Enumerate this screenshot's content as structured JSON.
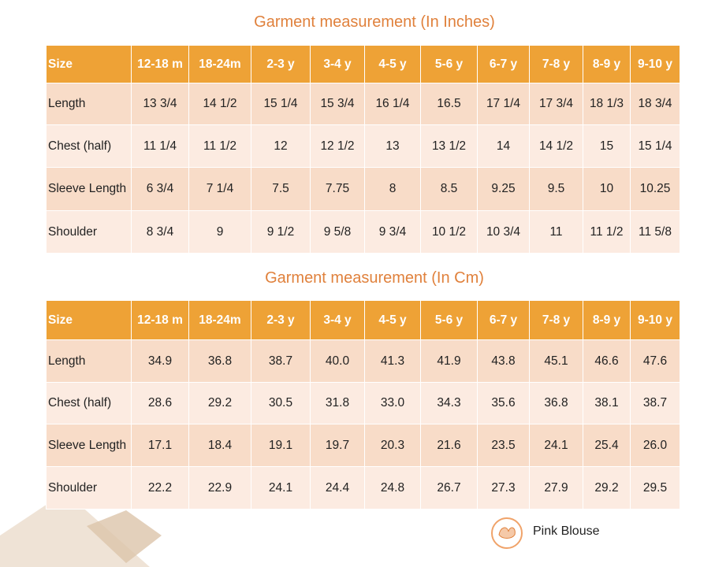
{
  "tables": [
    {
      "title": "Garment measurement (In Inches)",
      "header": [
        "Size",
        "12-18 m",
        "18-24m",
        "2-3 y",
        "3-4 y",
        "4-5 y",
        "5-6 y",
        "6-7 y",
        "7-8 y",
        "8-9 y",
        "9-10 y"
      ],
      "rows": [
        [
          "Length",
          "13 3/4",
          "14 1/2",
          "15 1/4",
          "15 3/4",
          "16 1/4",
          "16.5",
          "17 1/4",
          "17 3/4",
          "18 1/3",
          "18 3/4"
        ],
        [
          "Chest (half)",
          "11 1/4",
          "11 1/2",
          "12",
          "12 1/2",
          "13",
          "13 1/2",
          "14",
          "14 1/2",
          "15",
          "15 1/4"
        ],
        [
          "Sleeve Length",
          "6 3/4",
          "7 1/4",
          "7.5",
          "7.75",
          "8",
          "8.5",
          "9.25",
          "9.5",
          "10",
          "10.25"
        ],
        [
          "Shoulder",
          "8 3/4",
          "9",
          "9 1/2",
          "9 5/8",
          "9 3/4",
          "10 1/2",
          "10 3/4",
          "11",
          "11 1/2",
          "11 5/8"
        ]
      ]
    },
    {
      "title": "Garment measurement (In Cm)",
      "header": [
        "Size",
        "12-18 m",
        "18-24m",
        "2-3 y",
        "3-4 y",
        "4-5 y",
        "5-6 y",
        "6-7 y",
        "7-8 y",
        "8-9 y",
        "9-10 y"
      ],
      "rows": [
        [
          "Length",
          "34.9",
          "36.8",
          "38.7",
          "40.0",
          "41.3",
          "41.9",
          "43.8",
          "45.1",
          "46.6",
          "47.6"
        ],
        [
          "Chest (half)",
          "28.6",
          "29.2",
          "30.5",
          "31.8",
          "33.0",
          "34.3",
          "35.6",
          "36.8",
          "38.1",
          "38.7"
        ],
        [
          "Sleeve Length",
          "17.1",
          "18.4",
          "19.1",
          "19.7",
          "20.3",
          "21.6",
          "23.5",
          "24.1",
          "25.4",
          "26.0"
        ],
        [
          "Shoulder",
          "22.2",
          "22.9",
          "24.1",
          "24.4",
          "24.8",
          "26.7",
          "27.3",
          "27.9",
          "29.2",
          "29.5"
        ]
      ]
    }
  ],
  "brand": "Pink Blouse"
}
